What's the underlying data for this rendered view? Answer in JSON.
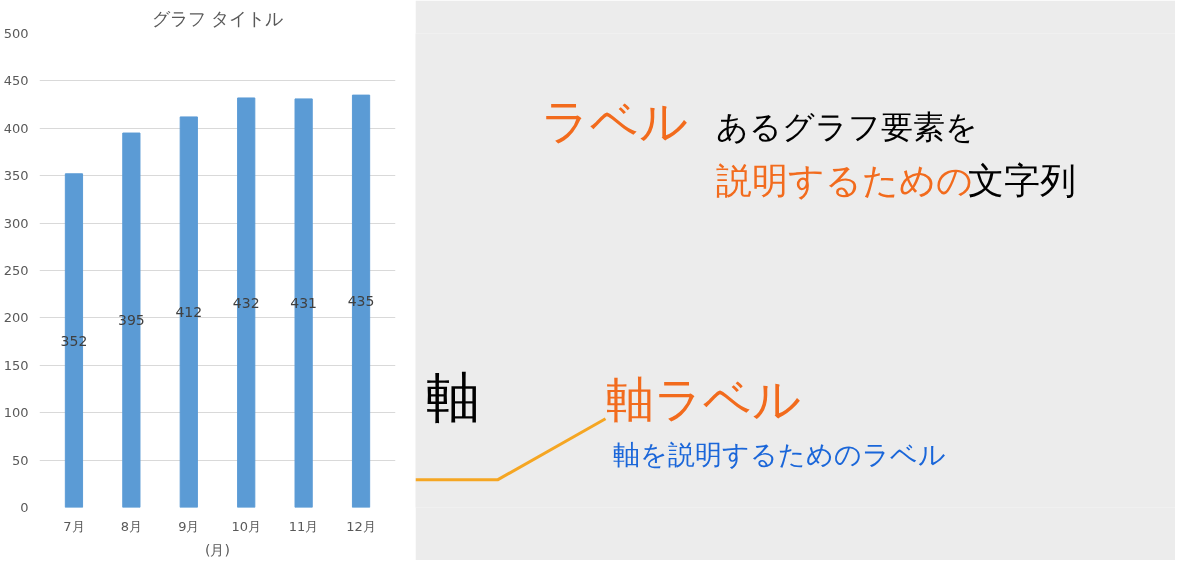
{
  "chart_data": {
    "type": "bar",
    "title": "グラフ タイトル",
    "xlabel": "(月)",
    "categories": [
      "7月",
      "8月",
      "9月",
      "10月",
      "11月",
      "12月"
    ],
    "values": [
      352,
      395,
      412,
      432,
      431,
      435
    ],
    "color": "#5b9bd5",
    "ylim": [
      0,
      500
    ],
    "yticks": [
      0,
      50,
      100,
      150,
      200,
      250,
      300,
      350,
      400,
      450,
      500
    ],
    "grid": "y",
    "data_labels": true,
    "annotations": [
      "ラベル",
      "あるグラフ要素を",
      "説明するための",
      "文字列",
      "軸",
      "軸ラベル",
      "軸を説明するためのラベル"
    ]
  }
}
